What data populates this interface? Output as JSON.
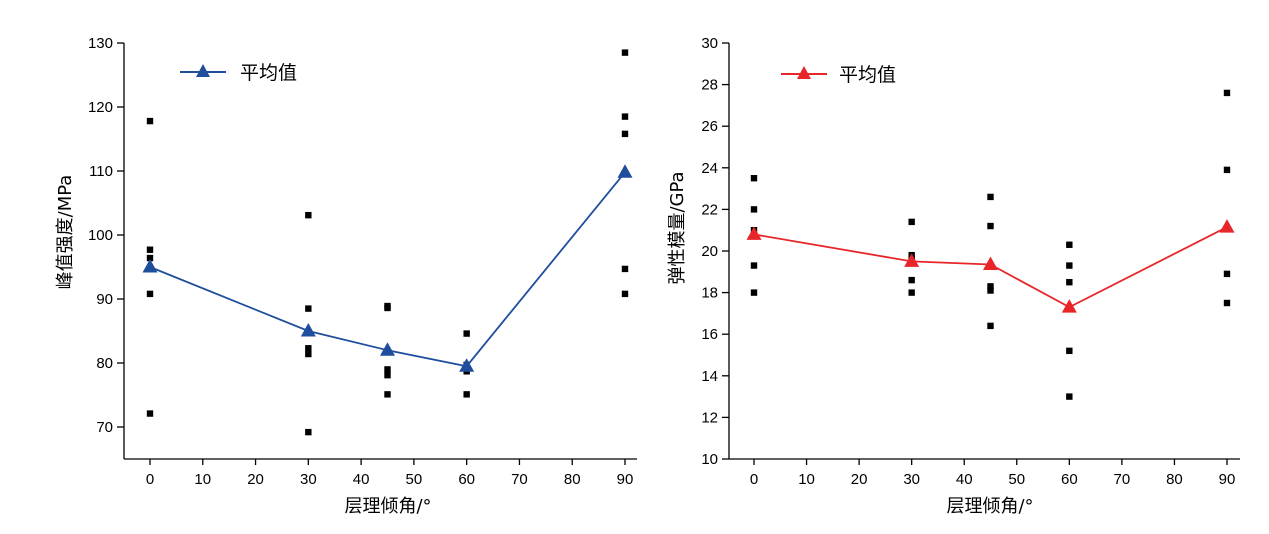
{
  "chart_data": [
    {
      "type": "scatter",
      "xlabel": "层理倾角/°",
      "ylabel": "峰值强度/MPa",
      "xlim": [
        -5,
        90
      ],
      "ylim": [
        65,
        130
      ],
      "xticks": [
        0,
        10,
        20,
        30,
        40,
        50,
        60,
        70,
        80,
        90
      ],
      "yticks": [
        70,
        80,
        90,
        100,
        110,
        120,
        130
      ],
      "grid": false,
      "legend_position": "top-left",
      "samples": {
        "x": [
          0,
          0,
          0,
          0,
          0,
          30,
          30,
          30,
          30,
          30,
          45,
          45,
          45,
          45,
          45,
          60,
          60,
          60,
          60,
          90,
          90,
          90,
          90,
          90
        ],
        "y": [
          117.8,
          97.7,
          96.4,
          90.8,
          72.1,
          103.1,
          88.5,
          82.3,
          81.4,
          69.2,
          88.9,
          88.6,
          79.0,
          78.1,
          75.1,
          84.6,
          79.7,
          78.7,
          75.1,
          128.5,
          118.5,
          115.8,
          94.7,
          90.8
        ]
      },
      "series": [
        {
          "name": "平均值",
          "x": [
            0,
            30,
            45,
            60,
            90
          ],
          "y": [
            95.0,
            85.0,
            82.0,
            79.5,
            109.8
          ],
          "color": "#1f4e9c",
          "marker": "triangle"
        }
      ]
    },
    {
      "type": "scatter",
      "xlabel": "层理倾角/°",
      "ylabel": "弹性模量/GPa",
      "xlim": [
        -5,
        90
      ],
      "ylim": [
        10,
        30
      ],
      "xticks": [
        0,
        10,
        20,
        30,
        40,
        50,
        60,
        70,
        80,
        90
      ],
      "yticks": [
        10,
        12,
        14,
        16,
        18,
        20,
        22,
        24,
        26,
        28,
        30
      ],
      "grid": false,
      "legend_position": "top-left",
      "samples": {
        "x": [
          0,
          0,
          0,
          0,
          0,
          30,
          30,
          30,
          30,
          30,
          30,
          45,
          45,
          45,
          45,
          45,
          60,
          60,
          60,
          60,
          60,
          90,
          90,
          90,
          90
        ],
        "y": [
          23.5,
          22.0,
          21.0,
          19.3,
          18.0,
          21.4,
          19.8,
          19.6,
          19.5,
          18.6,
          18.0,
          22.6,
          21.2,
          18.3,
          18.1,
          16.4,
          20.3,
          19.3,
          18.5,
          15.2,
          13.0,
          27.6,
          23.9,
          18.9,
          17.5
        ]
      },
      "series": [
        {
          "name": "平均值",
          "x": [
            0,
            30,
            45,
            60,
            90
          ],
          "y": [
            20.8,
            19.5,
            19.35,
            17.3,
            21.15
          ],
          "color": "#e8262a",
          "marker": "triangle"
        }
      ]
    }
  ]
}
